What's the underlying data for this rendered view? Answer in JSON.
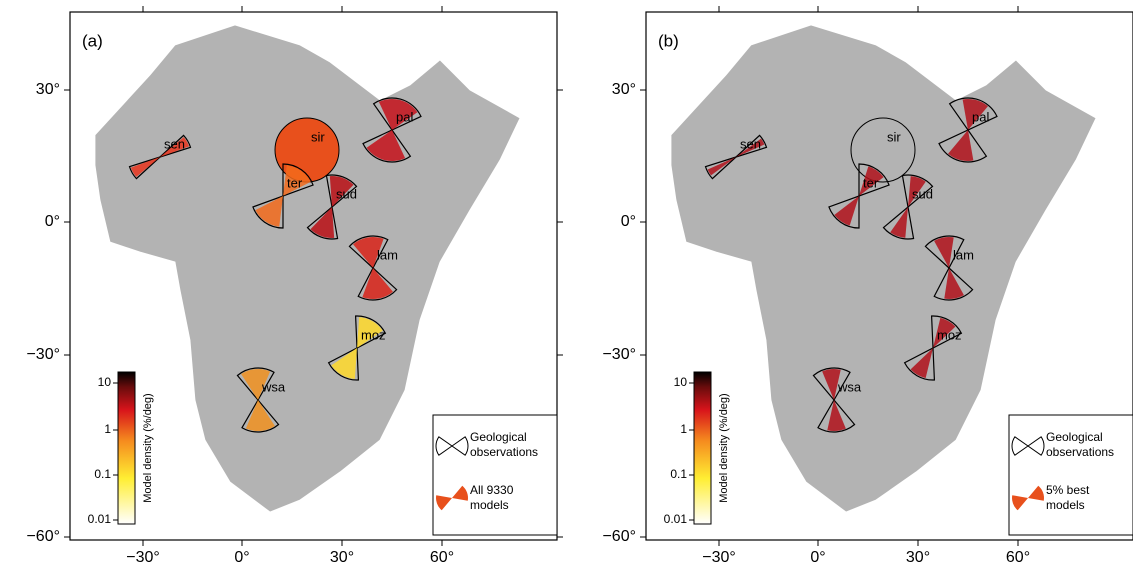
{
  "panels": [
    {
      "label": "(a)",
      "x_ticks": [
        "−30°",
        "0°",
        "30°",
        "60°"
      ],
      "y_ticks": [
        "30°",
        "0°",
        "−30°",
        "−60°"
      ],
      "sites": [
        "sen",
        "sir",
        "pal",
        "ter",
        "sud",
        "lam",
        "moz",
        "wsa"
      ],
      "colorbar": {
        "title": "Model density (%/deg)",
        "ticks": [
          "10",
          "1",
          "0.1",
          "0.01"
        ]
      },
      "legend": {
        "observations": [
          "Geological",
          "observations"
        ],
        "models": [
          "All 9330",
          "models"
        ]
      }
    },
    {
      "label": "(b)",
      "x_ticks": [
        "−30°",
        "0°",
        "30°",
        "60°"
      ],
      "y_ticks": [
        "30°",
        "0°",
        "−30°",
        "−60°"
      ],
      "sites": [
        "sen",
        "sir",
        "pal",
        "ter",
        "sud",
        "lam",
        "moz",
        "wsa"
      ],
      "colorbar": {
        "title": "Model density (%/deg)",
        "ticks": [
          "10",
          "1",
          "0.1",
          "0.01"
        ]
      },
      "legend": {
        "observations": [
          "Geological",
          "observations"
        ],
        "models": [
          "5% best",
          "models"
        ]
      }
    }
  ]
}
